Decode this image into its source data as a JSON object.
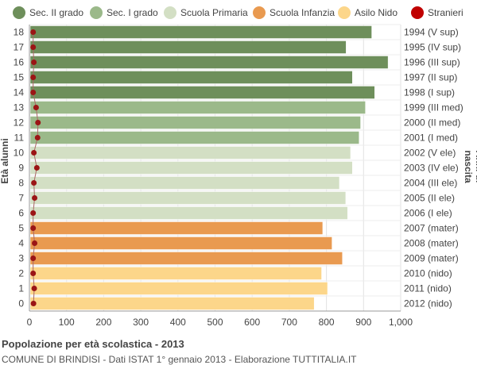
{
  "legend": [
    {
      "label": "Sec. II grado",
      "color": "#6e8f5b"
    },
    {
      "label": "Sec. I grado",
      "color": "#9bb98a"
    },
    {
      "label": "Scuola Primaria",
      "color": "#d3dfc4"
    },
    {
      "label": "Scuola Infanzia",
      "color": "#e99a50"
    },
    {
      "label": "Asilo Nido",
      "color": "#fcd68a"
    },
    {
      "label": "Stranieri",
      "color": "#c00000"
    }
  ],
  "footer": {
    "title": "Popolazione per età scolastica - 2013",
    "subtitle": "COMUNE DI BRINDISI - Dati ISTAT 1° gennaio 2013 - Elaborazione TUTTITALIA.IT"
  },
  "chart_data": {
    "type": "bar",
    "orientation": "horizontal",
    "ylabel": "Età alunni",
    "ylabel_right": "Anni di nascita",
    "xlim": [
      0,
      1000
    ],
    "xticks": [
      0,
      100,
      200,
      300,
      400,
      500,
      600,
      700,
      800,
      900,
      "1,000"
    ],
    "grid": true,
    "legend_position": "top",
    "categories": [
      "18",
      "17",
      "16",
      "15",
      "14",
      "13",
      "12",
      "11",
      "10",
      "9",
      "8",
      "7",
      "6",
      "5",
      "4",
      "3",
      "2",
      "1",
      "0"
    ],
    "birth_years": [
      "1994 (V sup)",
      "1995 (IV sup)",
      "1996 (III sup)",
      "1997 (II sup)",
      "1998 (I sup)",
      "1999 (III med)",
      "2000 (II med)",
      "2001 (I med)",
      "2002 (V ele)",
      "2003 (IV ele)",
      "2004 (III ele)",
      "2005 (II ele)",
      "2006 (I ele)",
      "2007 (mater)",
      "2008 (mater)",
      "2009 (mater)",
      "2010 (nido)",
      "2011 (nido)",
      "2012 (nido)"
    ],
    "values": [
      922,
      853,
      966,
      870,
      930,
      905,
      892,
      888,
      865,
      870,
      835,
      852,
      857,
      790,
      815,
      843,
      787,
      803,
      767
    ],
    "groups": [
      "Sec. II grado",
      "Sec. II grado",
      "Sec. II grado",
      "Sec. II grado",
      "Sec. II grado",
      "Sec. I grado",
      "Sec. I grado",
      "Sec. I grado",
      "Scuola Primaria",
      "Scuola Primaria",
      "Scuola Primaria",
      "Scuola Primaria",
      "Scuola Primaria",
      "Scuola Infanzia",
      "Scuola Infanzia",
      "Scuola Infanzia",
      "Asilo Nido",
      "Asilo Nido",
      "Asilo Nido"
    ],
    "series": [
      {
        "name": "Stranieri",
        "values": [
          10,
          10,
          12,
          10,
          10,
          18,
          23,
          22,
          12,
          20,
          12,
          14,
          10,
          10,
          14,
          10,
          10,
          13,
          11
        ]
      }
    ]
  }
}
